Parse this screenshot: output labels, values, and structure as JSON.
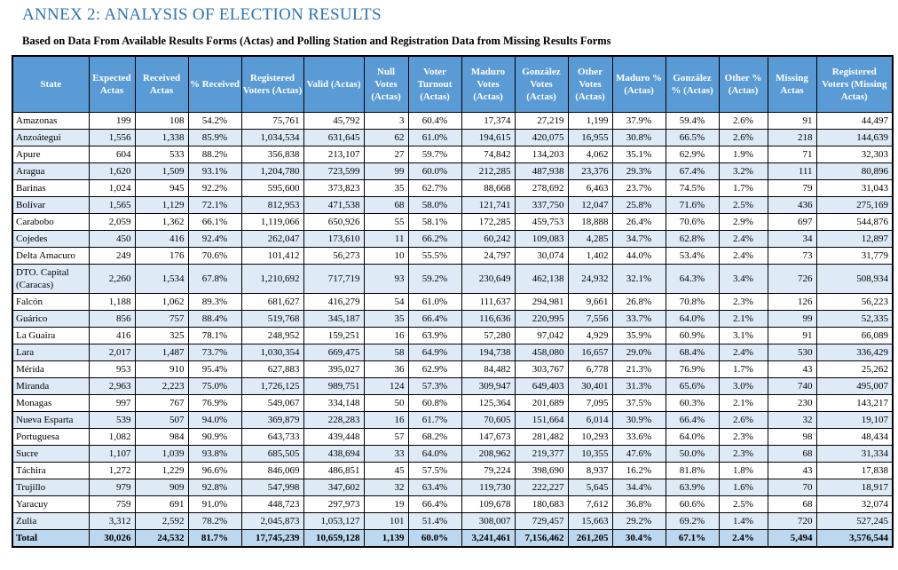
{
  "page": {
    "title": "ANNEX 2: ANALYSIS OF ELECTION RESULTS",
    "subtitle": "Based on Data From Available Results Forms (Actas) and Polling Station and Registration Data from Missing Results Forms"
  },
  "colors": {
    "title": "#2E74B5",
    "header_bg": "#5B9BD5",
    "header_text": "#FFFFFF",
    "alt_row_bg": "#DEEAF6",
    "total_row_bg": "#BDD7EE",
    "border": "#000000"
  },
  "table": {
    "columns": [
      "State",
      "Expected Actas",
      "Received Actas",
      "% Received",
      "Registered Voters (Actas)",
      "Valid (Actas)",
      "Null Votes (Actas)",
      "Voter Turnout (Actas)",
      "Maduro Votes (Actas)",
      "González Votes (Actas)",
      "Other Votes (Actas)",
      "Maduro % (Actas)",
      "González % (Actas)",
      "Other % (Actas)",
      "Missing Actas",
      "Registered Voters (Missing Actas)"
    ],
    "rows": [
      [
        "Amazonas",
        "199",
        "108",
        "54.2%",
        "75,761",
        "45,792",
        "3",
        "60.4%",
        "17,374",
        "27,219",
        "1,199",
        "37.9%",
        "59.4%",
        "2.6%",
        "91",
        "44,497"
      ],
      [
        "Anzoátegui",
        "1,556",
        "1,338",
        "85.9%",
        "1,034,534",
        "631,645",
        "62",
        "61.0%",
        "194,615",
        "420,075",
        "16,955",
        "30.8%",
        "66.5%",
        "2.6%",
        "218",
        "144,639"
      ],
      [
        "Apure",
        "604",
        "533",
        "88.2%",
        "356,838",
        "213,107",
        "27",
        "59.7%",
        "74,842",
        "134,203",
        "4,062",
        "35.1%",
        "62.9%",
        "1.9%",
        "71",
        "32,303"
      ],
      [
        "Aragua",
        "1,620",
        "1,509",
        "93.1%",
        "1,204,780",
        "723,599",
        "99",
        "60.0%",
        "212,285",
        "487,938",
        "23,376",
        "29.3%",
        "67.4%",
        "3.2%",
        "111",
        "80,896"
      ],
      [
        "Barinas",
        "1,024",
        "945",
        "92.2%",
        "595,600",
        "373,823",
        "35",
        "62.7%",
        "88,668",
        "278,692",
        "6,463",
        "23.7%",
        "74.5%",
        "1.7%",
        "79",
        "31,043"
      ],
      [
        "Bolívar",
        "1,565",
        "1,129",
        "72.1%",
        "812,953",
        "471,538",
        "68",
        "58.0%",
        "121,741",
        "337,750",
        "12,047",
        "25.8%",
        "71.6%",
        "2.5%",
        "436",
        "275,169"
      ],
      [
        "Carabobo",
        "2,059",
        "1,362",
        "66.1%",
        "1,119,066",
        "650,926",
        "55",
        "58.1%",
        "172,285",
        "459,753",
        "18,888",
        "26.4%",
        "70.6%",
        "2.9%",
        "697",
        "544,876"
      ],
      [
        "Cojedes",
        "450",
        "416",
        "92.4%",
        "262,047",
        "173,610",
        "11",
        "66.2%",
        "60,242",
        "109,083",
        "4,285",
        "34.7%",
        "62.8%",
        "2.4%",
        "34",
        "12,897"
      ],
      [
        "Delta Amacuro",
        "249",
        "176",
        "70.6%",
        "101,412",
        "56,273",
        "10",
        "55.5%",
        "24,797",
        "30,074",
        "1,402",
        "44.0%",
        "53.4%",
        "2.4%",
        "73",
        "31,779"
      ],
      [
        "DTO. Capital (Caracas)",
        "2,260",
        "1,534",
        "67.8%",
        "1,210,692",
        "717,719",
        "93",
        "59.2%",
        "230,649",
        "462,138",
        "24,932",
        "32.1%",
        "64.3%",
        "3.4%",
        "726",
        "508,934"
      ],
      [
        "Falcón",
        "1,188",
        "1,062",
        "89.3%",
        "681,627",
        "416,279",
        "54",
        "61.0%",
        "111,637",
        "294,981",
        "9,661",
        "26.8%",
        "70.8%",
        "2.3%",
        "126",
        "56,223"
      ],
      [
        "Guárico",
        "856",
        "757",
        "88.4%",
        "519,768",
        "345,187",
        "35",
        "66.4%",
        "116,636",
        "220,995",
        "7,556",
        "33.7%",
        "64.0%",
        "2.1%",
        "99",
        "52,335"
      ],
      [
        "La Guaira",
        "416",
        "325",
        "78.1%",
        "248,952",
        "159,251",
        "16",
        "63.9%",
        "57,280",
        "97,042",
        "4,929",
        "35.9%",
        "60.9%",
        "3.1%",
        "91",
        "66,089"
      ],
      [
        "Lara",
        "2,017",
        "1,487",
        "73.7%",
        "1,030,354",
        "669,475",
        "58",
        "64.9%",
        "194,738",
        "458,080",
        "16,657",
        "29.0%",
        "68.4%",
        "2.4%",
        "530",
        "336,429"
      ],
      [
        "Mérida",
        "953",
        "910",
        "95.4%",
        "627,883",
        "395,027",
        "36",
        "62.9%",
        "84,482",
        "303,767",
        "6,778",
        "21.3%",
        "76.9%",
        "1.7%",
        "43",
        "25,262"
      ],
      [
        "Miranda",
        "2,963",
        "2,223",
        "75.0%",
        "1,726,125",
        "989,751",
        "124",
        "57.3%",
        "309,947",
        "649,403",
        "30,401",
        "31.3%",
        "65.6%",
        "3.0%",
        "740",
        "495,007"
      ],
      [
        "Monagas",
        "997",
        "767",
        "76.9%",
        "549,067",
        "334,148",
        "50",
        "60.8%",
        "125,364",
        "201,689",
        "7,095",
        "37.5%",
        "60.3%",
        "2.1%",
        "230",
        "143,217"
      ],
      [
        "Nueva Esparta",
        "539",
        "507",
        "94.0%",
        "369,879",
        "228,283",
        "16",
        "61.7%",
        "70,605",
        "151,664",
        "6,014",
        "30.9%",
        "66.4%",
        "2.6%",
        "32",
        "19,107"
      ],
      [
        "Portuguesa",
        "1,082",
        "984",
        "90.9%",
        "643,733",
        "439,448",
        "57",
        "68.2%",
        "147,673",
        "281,482",
        "10,293",
        "33.6%",
        "64.0%",
        "2.3%",
        "98",
        "48,434"
      ],
      [
        "Sucre",
        "1,107",
        "1,039",
        "93.8%",
        "685,505",
        "438,694",
        "33",
        "64.0%",
        "208,962",
        "219,377",
        "10,355",
        "47.6%",
        "50.0%",
        "2.3%",
        "68",
        "31,334"
      ],
      [
        "Táchira",
        "1,272",
        "1,229",
        "96.6%",
        "846,069",
        "486,851",
        "45",
        "57.5%",
        "79,224",
        "398,690",
        "8,937",
        "16.2%",
        "81.8%",
        "1.8%",
        "43",
        "17,838"
      ],
      [
        "Trujillo",
        "979",
        "909",
        "92.8%",
        "547,998",
        "347,602",
        "32",
        "63.4%",
        "119,730",
        "222,227",
        "5,645",
        "34.4%",
        "63.9%",
        "1.6%",
        "70",
        "18,917"
      ],
      [
        "Yaracuy",
        "759",
        "691",
        "91.0%",
        "448,723",
        "297,973",
        "19",
        "66.4%",
        "109,678",
        "180,683",
        "7,612",
        "36.8%",
        "60.6%",
        "2.5%",
        "68",
        "32,074"
      ],
      [
        "Zulia",
        "3,312",
        "2,592",
        "78.2%",
        "2,045,873",
        "1,053,127",
        "101",
        "51.4%",
        "308,007",
        "729,457",
        "15,663",
        "29.2%",
        "69.2%",
        "1.4%",
        "720",
        "527,245"
      ]
    ],
    "total_row": [
      "Total",
      "30,026",
      "24,532",
      "81.7%",
      "17,745,239",
      "10,659,128",
      "1,139",
      "60.0%",
      "3,241,461",
      "7,156,462",
      "261,205",
      "30.4%",
      "67.1%",
      "2.4%",
      "5,494",
      "3,576,544"
    ]
  }
}
